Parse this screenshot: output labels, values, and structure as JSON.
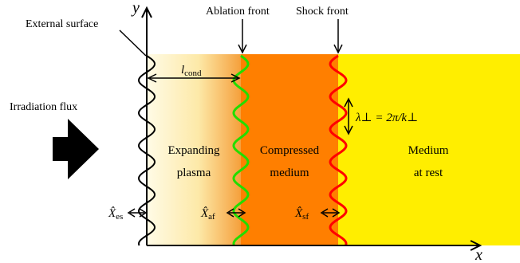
{
  "labels": {
    "external_surface": "External surface",
    "ablation_front": "Ablation front",
    "shock_front": "Shock front",
    "irradiation_flux": "Irradiation flux",
    "y_axis": "y",
    "x_axis": "x",
    "l_cond_main": "l",
    "l_cond_sub": "cond",
    "lambda_eq": "λ⊥ = 2π/k⊥",
    "expanding_1": "Expanding",
    "expanding_2": "plasma",
    "compressed_1": "Compressed",
    "compressed_2": "medium",
    "rest_1": "Medium",
    "rest_2": "at rest",
    "x_es_main": "X̂",
    "x_es_sub": "es",
    "x_af_main": "X̂",
    "x_af_sub": "af",
    "x_sf_main": "X̂",
    "x_sf_sub": "sf"
  },
  "colors": {
    "plasma_start": "#fffbe6",
    "plasma_end": "#f5a03c",
    "compressed": "#ff7f00",
    "rest": "#ffee00",
    "ablation_wave": "#22dd00",
    "shock_wave": "#ff0000",
    "surface_wave": "#000000"
  }
}
